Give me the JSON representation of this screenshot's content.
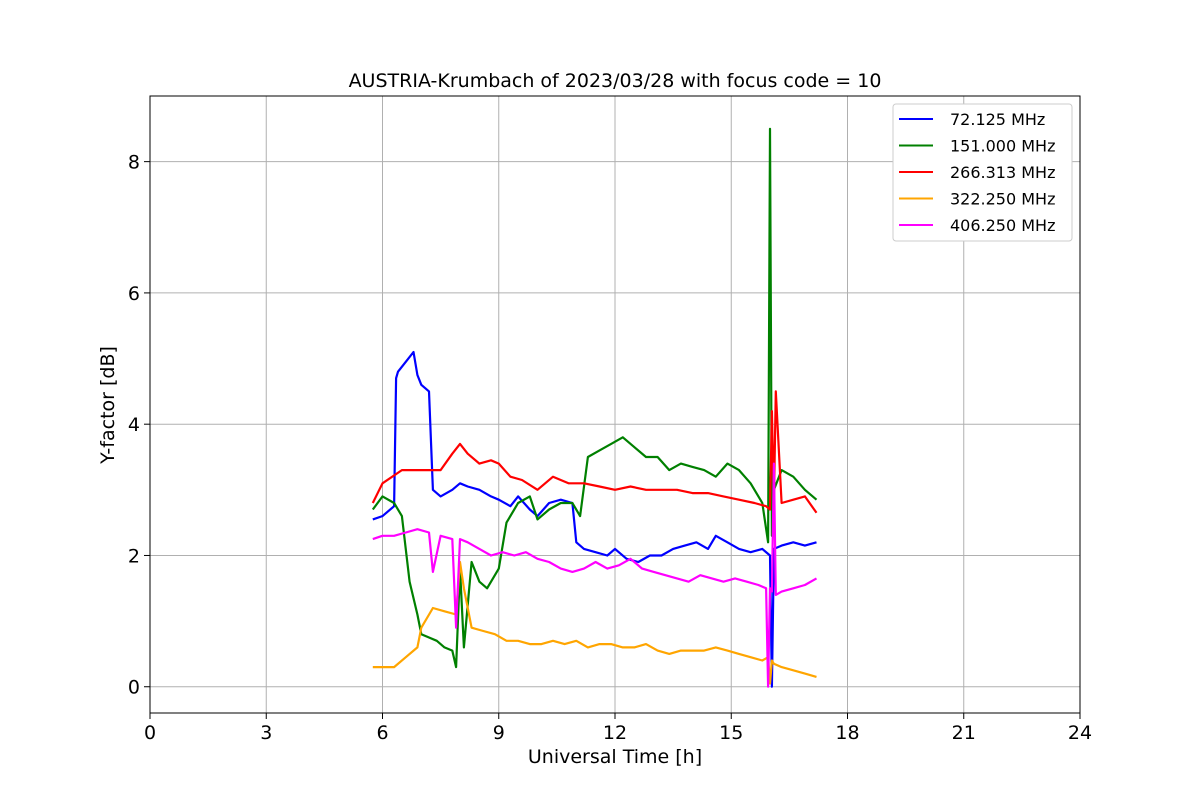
{
  "chart_data": {
    "type": "line",
    "title": "AUSTRIA-Krumbach of 2023/03/28 with focus code = 10",
    "xlabel": "Universal Time [h]",
    "ylabel": "Y-factor [dB]",
    "xlim": [
      0,
      24
    ],
    "ylim": [
      -0.4,
      9.0
    ],
    "xticks": [
      0,
      3,
      6,
      9,
      12,
      15,
      18,
      21,
      24
    ],
    "xtick_labels": [
      "0",
      "3",
      "6",
      "9",
      "12",
      "15",
      "18",
      "21",
      "24"
    ],
    "yticks": [
      0,
      2,
      4,
      6,
      8
    ],
    "ytick_labels": [
      "0",
      "2",
      "4",
      "6",
      "8"
    ],
    "grid": true,
    "legend_position": "top-right",
    "series": [
      {
        "name": "72.125 MHz",
        "legend_label": " 72.125 MHz",
        "color": "#0000ff",
        "x": [
          5.75,
          6.0,
          6.3,
          6.35,
          6.4,
          6.6,
          6.8,
          6.9,
          7.0,
          7.2,
          7.3,
          7.5,
          7.8,
          8.0,
          8.2,
          8.5,
          8.8,
          9.0,
          9.3,
          9.5,
          9.8,
          10.0,
          10.3,
          10.6,
          10.9,
          11.0,
          11.2,
          11.5,
          11.8,
          12.0,
          12.3,
          12.6,
          12.9,
          13.2,
          13.5,
          13.8,
          14.1,
          14.4,
          14.6,
          14.9,
          15.2,
          15.5,
          15.8,
          16.0,
          16.05,
          16.1,
          16.3,
          16.6,
          16.9,
          17.2
        ],
        "y": [
          2.55,
          2.6,
          2.75,
          4.7,
          4.8,
          4.95,
          5.1,
          4.75,
          4.6,
          4.5,
          3.0,
          2.9,
          3.0,
          3.1,
          3.05,
          3.0,
          2.9,
          2.85,
          2.75,
          2.9,
          2.7,
          2.6,
          2.8,
          2.85,
          2.8,
          2.2,
          2.1,
          2.05,
          2.0,
          2.1,
          1.95,
          1.9,
          2.0,
          2.0,
          2.1,
          2.15,
          2.2,
          2.1,
          2.3,
          2.2,
          2.1,
          2.05,
          2.1,
          2.0,
          0.0,
          2.1,
          2.15,
          2.2,
          2.15,
          2.2
        ]
      },
      {
        "name": "151.000 MHz",
        "legend_label": "151.000 MHz",
        "color": "#008000",
        "x": [
          5.75,
          6.0,
          6.3,
          6.5,
          6.7,
          6.9,
          7.0,
          7.2,
          7.4,
          7.6,
          7.8,
          7.9,
          8.0,
          8.1,
          8.3,
          8.5,
          8.7,
          9.0,
          9.2,
          9.5,
          9.8,
          10.0,
          10.3,
          10.6,
          10.9,
          11.1,
          11.3,
          11.6,
          11.9,
          12.2,
          12.5,
          12.8,
          13.1,
          13.4,
          13.7,
          14.0,
          14.3,
          14.6,
          14.9,
          15.2,
          15.5,
          15.8,
          15.95,
          16.0,
          16.05,
          16.1,
          16.3,
          16.6,
          16.9,
          17.2
        ],
        "y": [
          2.7,
          2.9,
          2.8,
          2.6,
          1.6,
          1.1,
          0.8,
          0.75,
          0.7,
          0.6,
          0.55,
          0.3,
          1.8,
          0.6,
          1.9,
          1.6,
          1.5,
          1.8,
          2.5,
          2.8,
          2.9,
          2.55,
          2.7,
          2.8,
          2.8,
          2.6,
          3.5,
          3.6,
          3.7,
          3.8,
          3.65,
          3.5,
          3.5,
          3.3,
          3.4,
          3.35,
          3.3,
          3.2,
          3.4,
          3.3,
          3.1,
          2.8,
          2.2,
          8.5,
          2.3,
          3.0,
          3.3,
          3.2,
          3.0,
          2.85
        ]
      },
      {
        "name": "266.313 MHz",
        "legend_label": "266.313 MHz",
        "color": "#ff0000",
        "x": [
          5.75,
          6.0,
          6.5,
          7.0,
          7.5,
          7.8,
          8.0,
          8.2,
          8.5,
          8.8,
          9.0,
          9.3,
          9.6,
          10.0,
          10.4,
          10.8,
          11.2,
          11.6,
          12.0,
          12.4,
          12.8,
          13.2,
          13.6,
          14.0,
          14.4,
          14.8,
          15.2,
          15.6,
          15.9,
          16.0,
          16.05,
          16.1,
          16.15,
          16.3,
          16.6,
          16.9,
          17.2
        ],
        "y": [
          2.8,
          3.1,
          3.3,
          3.3,
          3.3,
          3.55,
          3.7,
          3.55,
          3.4,
          3.45,
          3.4,
          3.2,
          3.15,
          3.0,
          3.2,
          3.1,
          3.1,
          3.05,
          3.0,
          3.05,
          3.0,
          3.0,
          3.0,
          2.95,
          2.95,
          2.9,
          2.85,
          2.8,
          2.75,
          2.7,
          4.2,
          2.8,
          4.5,
          2.8,
          2.85,
          2.9,
          2.65
        ]
      },
      {
        "name": "322.250 MHz",
        "legend_label": "322.250 MHz",
        "color": "#ffa500",
        "x": [
          5.75,
          6.0,
          6.3,
          6.6,
          6.9,
          7.0,
          7.3,
          7.6,
          7.9,
          8.0,
          8.1,
          8.3,
          8.6,
          8.9,
          9.2,
          9.5,
          9.8,
          10.1,
          10.4,
          10.7,
          11.0,
          11.3,
          11.6,
          11.9,
          12.2,
          12.5,
          12.8,
          13.1,
          13.4,
          13.7,
          14.0,
          14.3,
          14.6,
          14.9,
          15.2,
          15.5,
          15.8,
          15.95,
          16.0,
          16.05,
          16.1,
          16.3,
          16.6,
          16.9,
          17.2
        ],
        "y": [
          0.3,
          0.3,
          0.3,
          0.45,
          0.6,
          0.9,
          1.2,
          1.15,
          1.1,
          1.9,
          1.5,
          0.9,
          0.85,
          0.8,
          0.7,
          0.7,
          0.65,
          0.65,
          0.7,
          0.65,
          0.7,
          0.6,
          0.65,
          0.65,
          0.6,
          0.6,
          0.65,
          0.55,
          0.5,
          0.55,
          0.55,
          0.55,
          0.6,
          0.55,
          0.5,
          0.45,
          0.4,
          0.45,
          0.05,
          0.4,
          0.35,
          0.3,
          0.25,
          0.2,
          0.15
        ]
      },
      {
        "name": "406.250 MHz",
        "legend_label": "406.250 MHz",
        "color": "#ff00ff",
        "x": [
          5.75,
          6.0,
          6.3,
          6.6,
          6.9,
          7.2,
          7.3,
          7.5,
          7.8,
          7.9,
          8.0,
          8.2,
          8.5,
          8.8,
          9.1,
          9.4,
          9.7,
          10.0,
          10.3,
          10.6,
          10.9,
          11.2,
          11.5,
          11.8,
          12.1,
          12.4,
          12.7,
          13.0,
          13.3,
          13.6,
          13.9,
          14.2,
          14.5,
          14.8,
          15.1,
          15.4,
          15.7,
          15.9,
          15.95,
          16.0,
          16.05,
          16.1,
          16.15,
          16.3,
          16.6,
          16.9,
          17.2
        ],
        "y": [
          2.25,
          2.3,
          2.3,
          2.35,
          2.4,
          2.35,
          1.75,
          2.3,
          2.25,
          0.9,
          2.25,
          2.2,
          2.1,
          2.0,
          2.05,
          2.0,
          2.05,
          1.95,
          1.9,
          1.8,
          1.75,
          1.8,
          1.9,
          1.8,
          1.85,
          1.95,
          1.8,
          1.75,
          1.7,
          1.65,
          1.6,
          1.7,
          1.65,
          1.6,
          1.65,
          1.6,
          1.55,
          1.5,
          0.0,
          1.5,
          1.45,
          3.4,
          1.4,
          1.45,
          1.5,
          1.55,
          1.65
        ]
      }
    ]
  }
}
